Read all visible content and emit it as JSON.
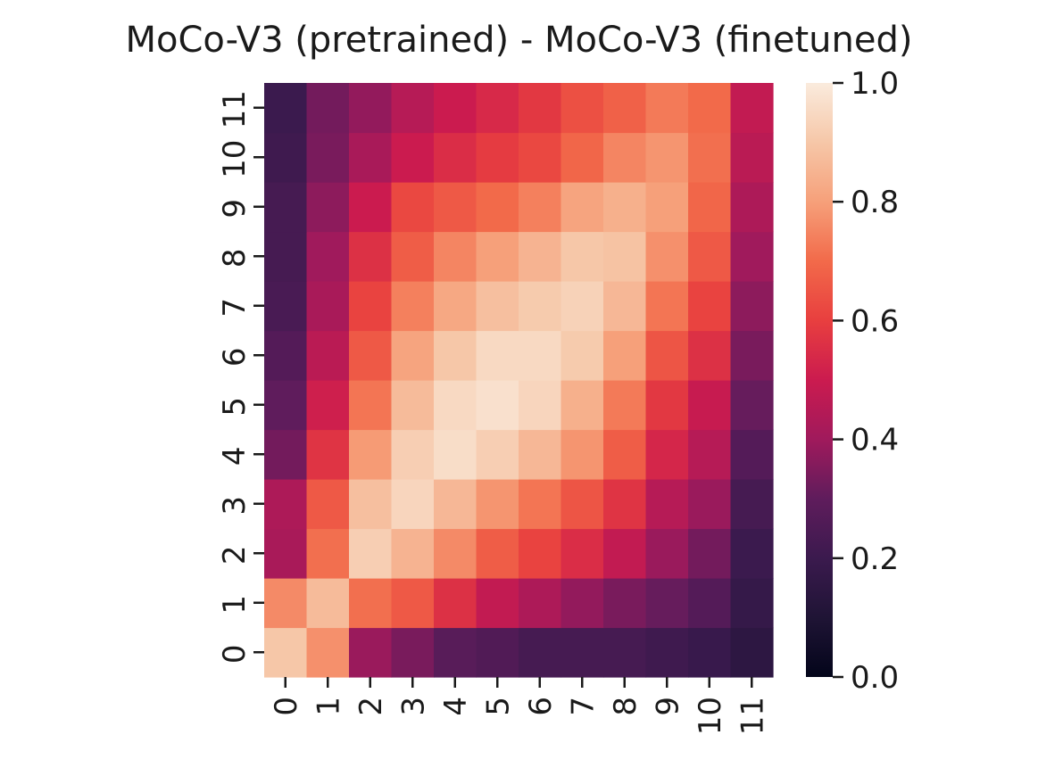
{
  "chart_data": {
    "type": "heatmap",
    "title": "MoCo-V3 (pretrained) - MoCo-V3 (finetuned)",
    "xlabel": "",
    "ylabel": "",
    "x_ticks": [
      "0",
      "1",
      "2",
      "3",
      "4",
      "5",
      "6",
      "7",
      "8",
      "9",
      "10",
      "11"
    ],
    "y_ticks": [
      "0",
      "1",
      "2",
      "3",
      "4",
      "5",
      "6",
      "7",
      "8",
      "9",
      "10",
      "11"
    ],
    "colormap": "rocket",
    "colorbar": {
      "range": [
        0.0,
        1.0
      ],
      "ticks": [
        "0.0",
        "0.2",
        "0.4",
        "0.6",
        "0.8",
        "1.0"
      ]
    },
    "values_by_row_y0_to_y11": [
      [
        0.9,
        0.77,
        0.39,
        0.34,
        0.28,
        0.26,
        0.23,
        0.23,
        0.23,
        0.21,
        0.19,
        0.15
      ],
      [
        0.76,
        0.87,
        0.71,
        0.66,
        0.56,
        0.48,
        0.43,
        0.38,
        0.34,
        0.31,
        0.27,
        0.18
      ],
      [
        0.42,
        0.71,
        0.92,
        0.85,
        0.76,
        0.67,
        0.61,
        0.55,
        0.48,
        0.39,
        0.33,
        0.2
      ],
      [
        0.43,
        0.66,
        0.88,
        0.94,
        0.86,
        0.78,
        0.72,
        0.65,
        0.57,
        0.45,
        0.39,
        0.23
      ],
      [
        0.33,
        0.57,
        0.79,
        0.92,
        0.96,
        0.92,
        0.86,
        0.78,
        0.67,
        0.53,
        0.45,
        0.27
      ],
      [
        0.3,
        0.51,
        0.72,
        0.87,
        0.95,
        0.97,
        0.94,
        0.84,
        0.73,
        0.58,
        0.49,
        0.31
      ],
      [
        0.27,
        0.46,
        0.66,
        0.81,
        0.9,
        0.95,
        0.95,
        0.91,
        0.8,
        0.65,
        0.56,
        0.34
      ],
      [
        0.24,
        0.42,
        0.61,
        0.74,
        0.82,
        0.88,
        0.91,
        0.93,
        0.86,
        0.72,
        0.61,
        0.37
      ],
      [
        0.23,
        0.4,
        0.56,
        0.67,
        0.75,
        0.8,
        0.85,
        0.9,
        0.89,
        0.77,
        0.66,
        0.4
      ],
      [
        0.23,
        0.37,
        0.5,
        0.62,
        0.66,
        0.7,
        0.74,
        0.81,
        0.84,
        0.8,
        0.69,
        0.43
      ],
      [
        0.21,
        0.34,
        0.42,
        0.5,
        0.55,
        0.59,
        0.62,
        0.69,
        0.75,
        0.78,
        0.71,
        0.46
      ],
      [
        0.2,
        0.33,
        0.38,
        0.45,
        0.5,
        0.54,
        0.58,
        0.64,
        0.68,
        0.73,
        0.7,
        0.48
      ]
    ]
  }
}
